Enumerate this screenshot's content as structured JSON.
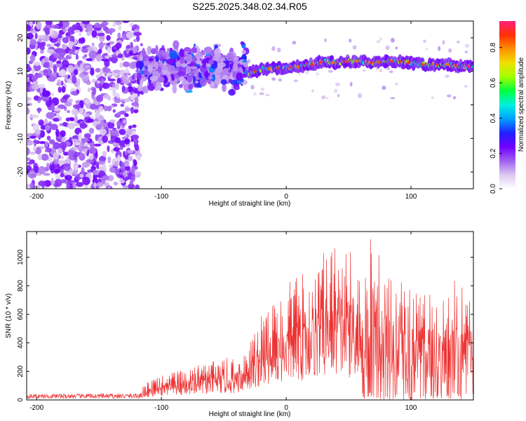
{
  "figure_title": "S225.2025.348.02.34.R05",
  "chart_data": [
    {
      "type": "heatmap",
      "title": "S225.2025.348.02.34.R05",
      "xlabel": "Height of straight line (km)",
      "ylabel": "Frequency (Hz)",
      "xlim": [
        -208,
        150
      ],
      "ylim": [
        -25,
        25
      ],
      "xticks": [
        -200,
        -100,
        0,
        100
      ],
      "yticks": [
        -20,
        -10,
        0,
        10,
        20
      ],
      "colorbar": {
        "label": "Normalized spectral amplitude",
        "range": [
          0.0,
          0.95
        ],
        "ticks": [
          0.0,
          0.2,
          0.4,
          0.6,
          0.8
        ],
        "colormap": [
          "#ffffff",
          "#dcc8f0",
          "#a060f0",
          "#7000ff",
          "#2020ff",
          "#00a0ff",
          "#00f0e0",
          "#00ff40",
          "#a0ff00",
          "#f0e000",
          "#ff9000",
          "#ff3000",
          "#ff2080"
        ]
      },
      "features": {
        "noise_region_x": [
          -208,
          -118
        ],
        "scatter_region_x": [
          -118,
          -32
        ],
        "scatter_center_hz": [
          9,
          13
        ],
        "ridge": {
          "x": [
            -30,
            -20,
            -10,
            0,
            10,
            20,
            30,
            40,
            50,
            60,
            70,
            80,
            90,
            100,
            110,
            120,
            130,
            140,
            150
          ],
          "freq_hz": [
            9.5,
            10.5,
            11,
            11,
            11.5,
            12,
            13,
            12.5,
            13,
            13,
            12.5,
            13,
            13,
            12.5,
            12,
            12,
            12,
            11.5,
            11.5
          ]
        }
      }
    },
    {
      "type": "line",
      "xlabel": "Height of straight line (km)",
      "ylabel": "SNR (10 * v/v)",
      "xlim": [
        -208,
        150
      ],
      "ylim": [
        0,
        1180
      ],
      "xticks": [
        -200,
        -100,
        0,
        100
      ],
      "yticks": [
        0,
        200,
        400,
        600,
        800,
        1000
      ],
      "series": [
        {
          "name": "SNR",
          "color": "#ee3333",
          "envelope": {
            "x": [
              -208,
              -120,
              -110,
              -100,
              -80,
              -60,
              -40,
              -30,
              -20,
              -10,
              0,
              10,
              20,
              30,
              40,
              50,
              60,
              70,
              80,
              90,
              100,
              110,
              120,
              130,
              140,
              150
            ],
            "peak": [
              45,
              50,
              140,
              170,
              220,
              270,
              310,
              420,
              590,
              720,
              820,
              880,
              950,
              1050,
              1110,
              1050,
              1000,
              1170,
              960,
              900,
              830,
              740,
              760,
              790,
              910,
              650
            ]
          }
        }
      ]
    }
  ]
}
